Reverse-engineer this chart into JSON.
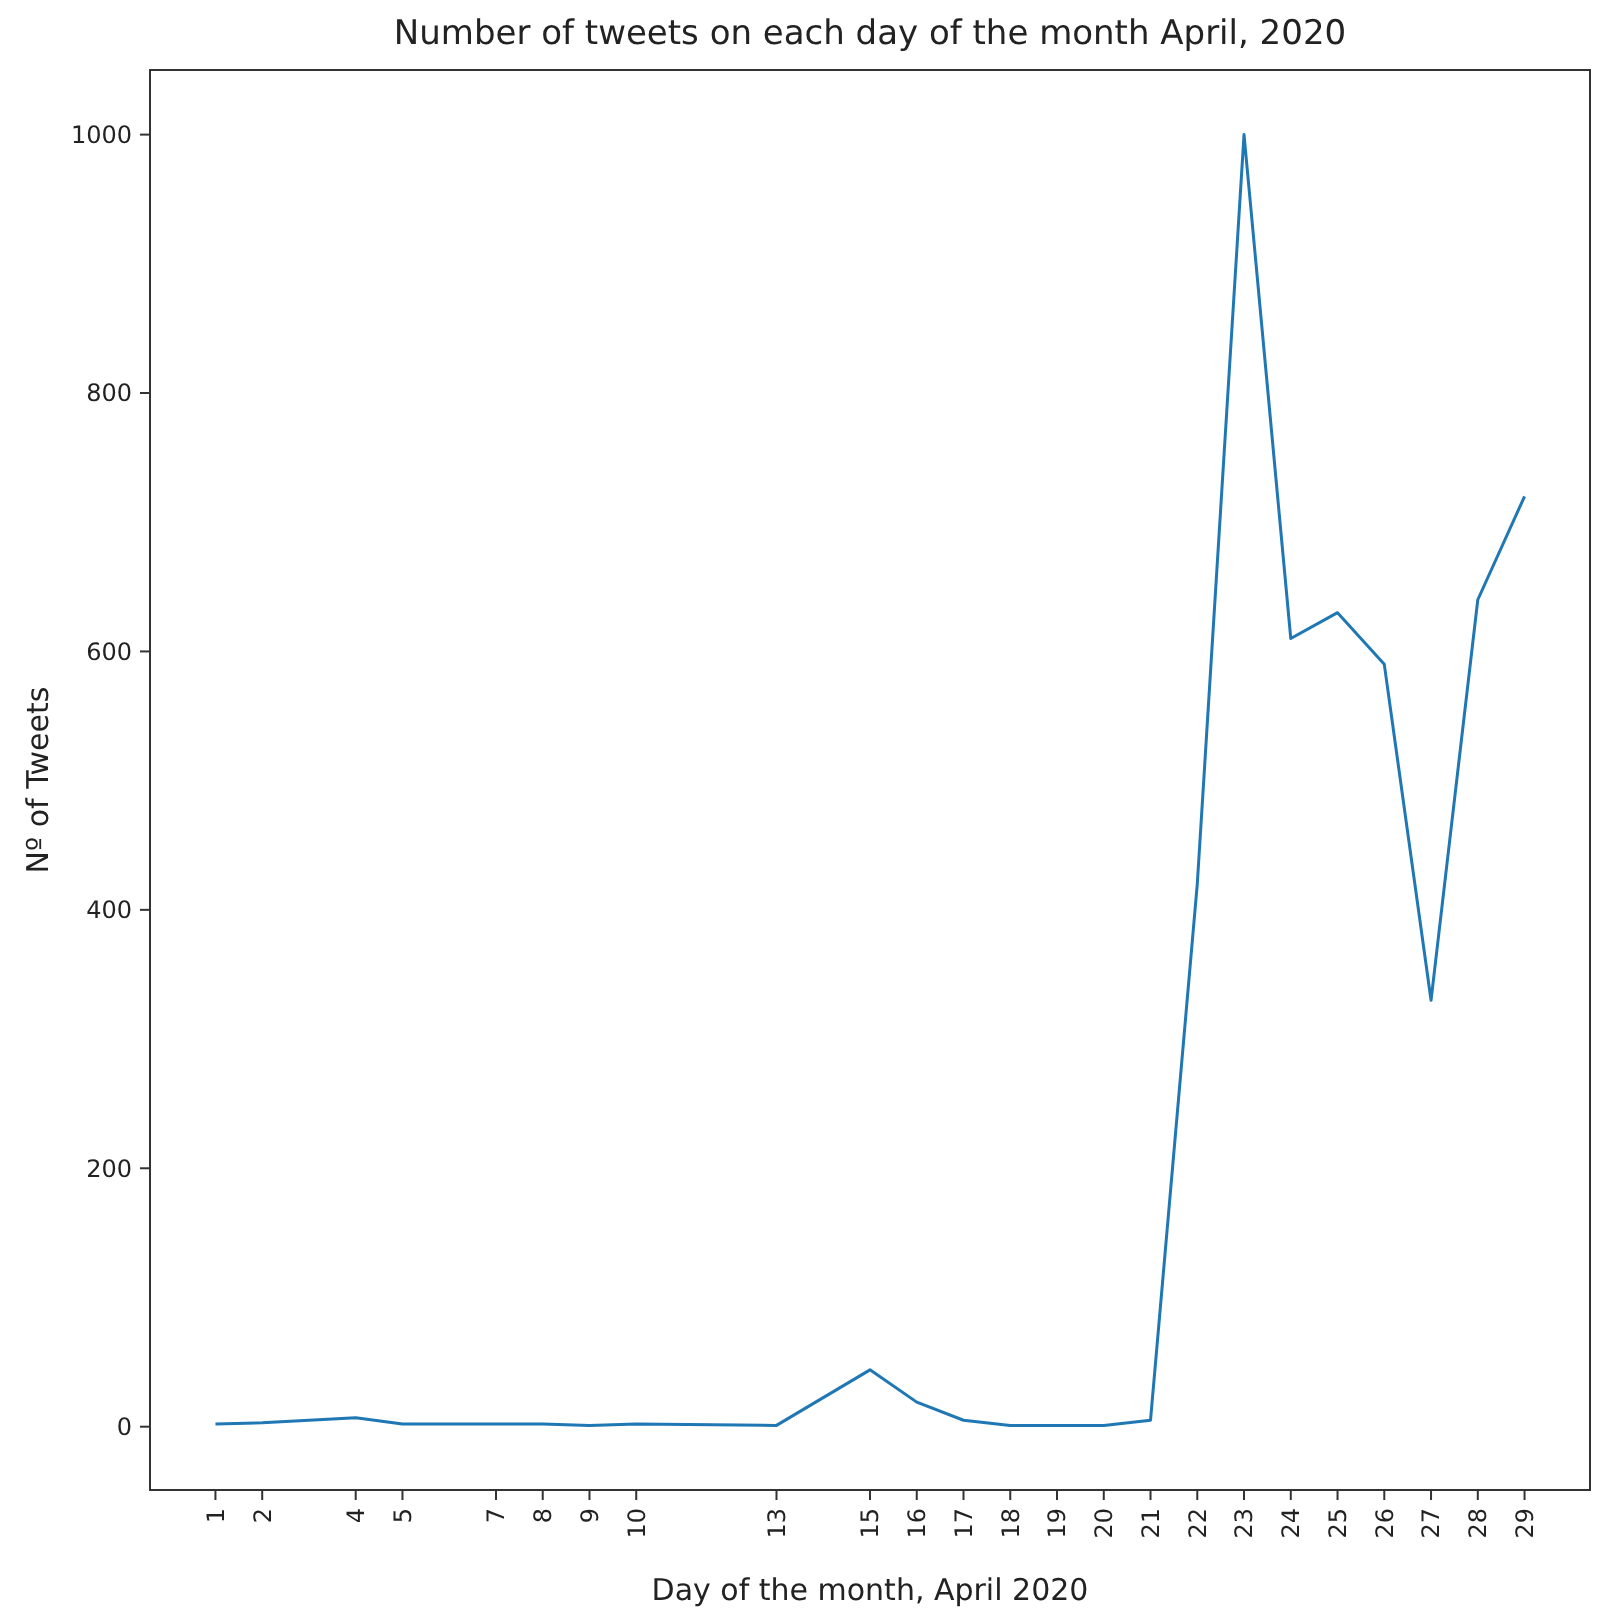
{
  "chart_data": {
    "type": "line",
    "title": "Number of tweets on each day of the month April, 2020",
    "xlabel": "Day of the month, April 2020",
    "ylabel": "Nº of Tweets",
    "x": [
      1,
      2,
      4,
      5,
      7,
      8,
      9,
      10,
      13,
      15,
      16,
      17,
      18,
      19,
      20,
      21,
      22,
      23,
      24,
      25,
      26,
      27,
      28,
      29
    ],
    "series": [
      {
        "color": "#1f77b4",
        "values": [
          2,
          3,
          7,
          2,
          2,
          2,
          1,
          2,
          1,
          44,
          19,
          5,
          1,
          1,
          1,
          5,
          420,
          1000,
          610,
          630,
          590,
          330,
          640,
          720
        ]
      }
    ],
    "xlim": [
      -0.4,
      30.4
    ],
    "xticks": [
      1,
      2,
      4,
      5,
      7,
      8,
      9,
      10,
      13,
      15,
      16,
      17,
      18,
      19,
      20,
      21,
      22,
      23,
      24,
      25,
      26,
      27,
      28,
      29
    ],
    "ylim": [
      -49,
      1050
    ],
    "yticks": [
      0,
      200,
      400,
      600,
      800,
      1000
    ],
    "grid": false,
    "marker": "none",
    "line_style": "solid"
  }
}
